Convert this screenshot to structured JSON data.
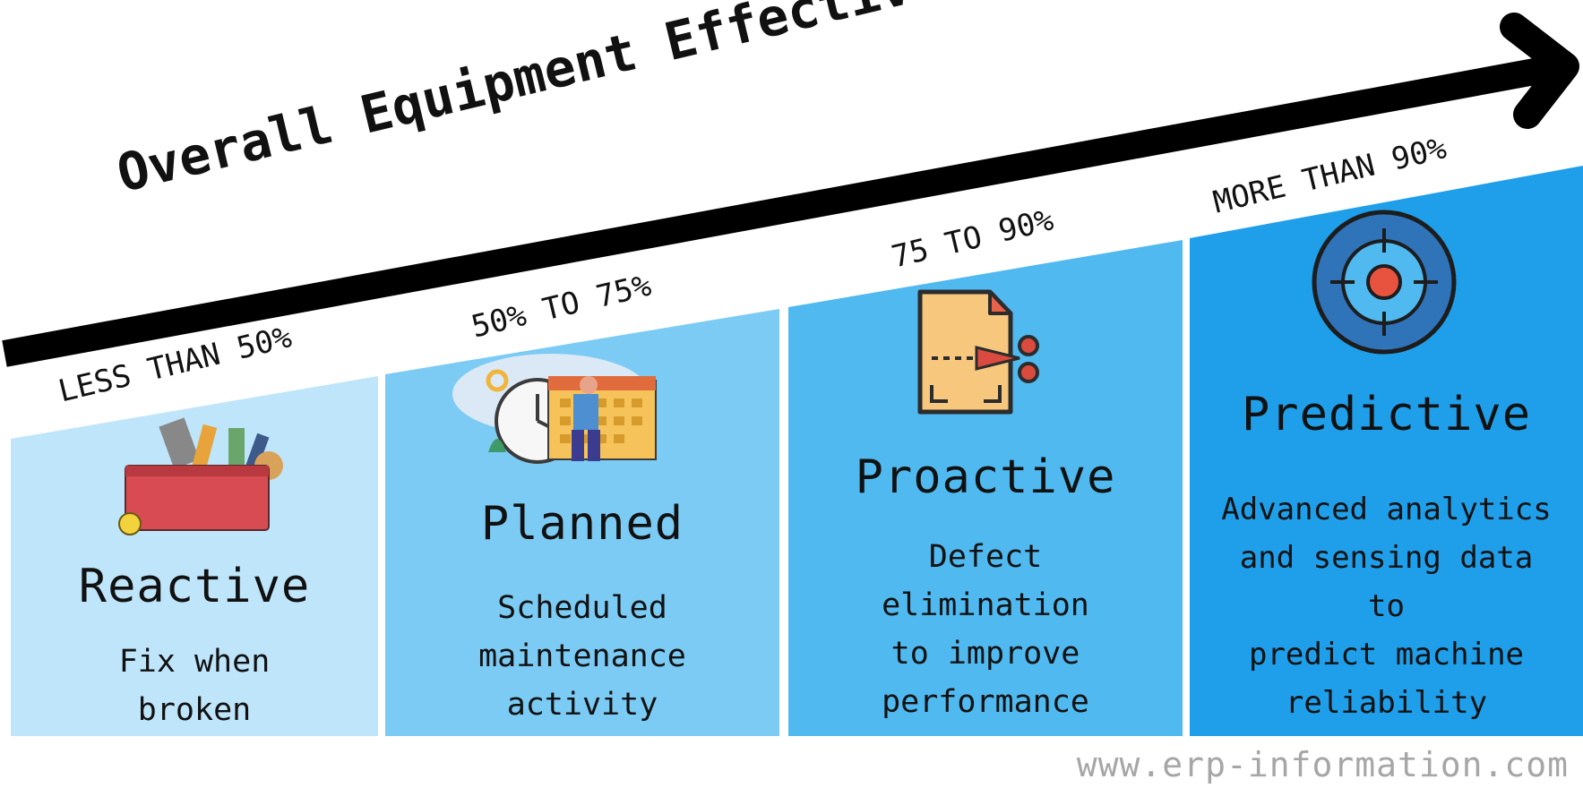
{
  "title": "Overall Equipment Effectiveness (OEE)",
  "stages": [
    {
      "range": "LESS THAN 50%",
      "name": "Reactive",
      "description": "Fix when\nbroken",
      "icon": "toolbox-icon",
      "color": "#bfe5fb"
    },
    {
      "range": "50% TO 75%",
      "name": "Planned",
      "description": "Scheduled\nmaintenance\nactivity",
      "icon": "calendar-schedule-icon",
      "color": "#7ccbf4"
    },
    {
      "range": "75 TO 90%",
      "name": "Proactive",
      "description": "Defect\nelimination\nto improve\nperformance",
      "icon": "document-scissors-icon",
      "color": "#4fb9f0"
    },
    {
      "range": "MORE THAN  90%",
      "name": "Predictive",
      "description": "Advanced analytics\nand sensing data\nto\npredict machine\nreliability",
      "icon": "target-icon",
      "color": "#1f9fea"
    }
  ],
  "footer": "www.erp-information.com"
}
